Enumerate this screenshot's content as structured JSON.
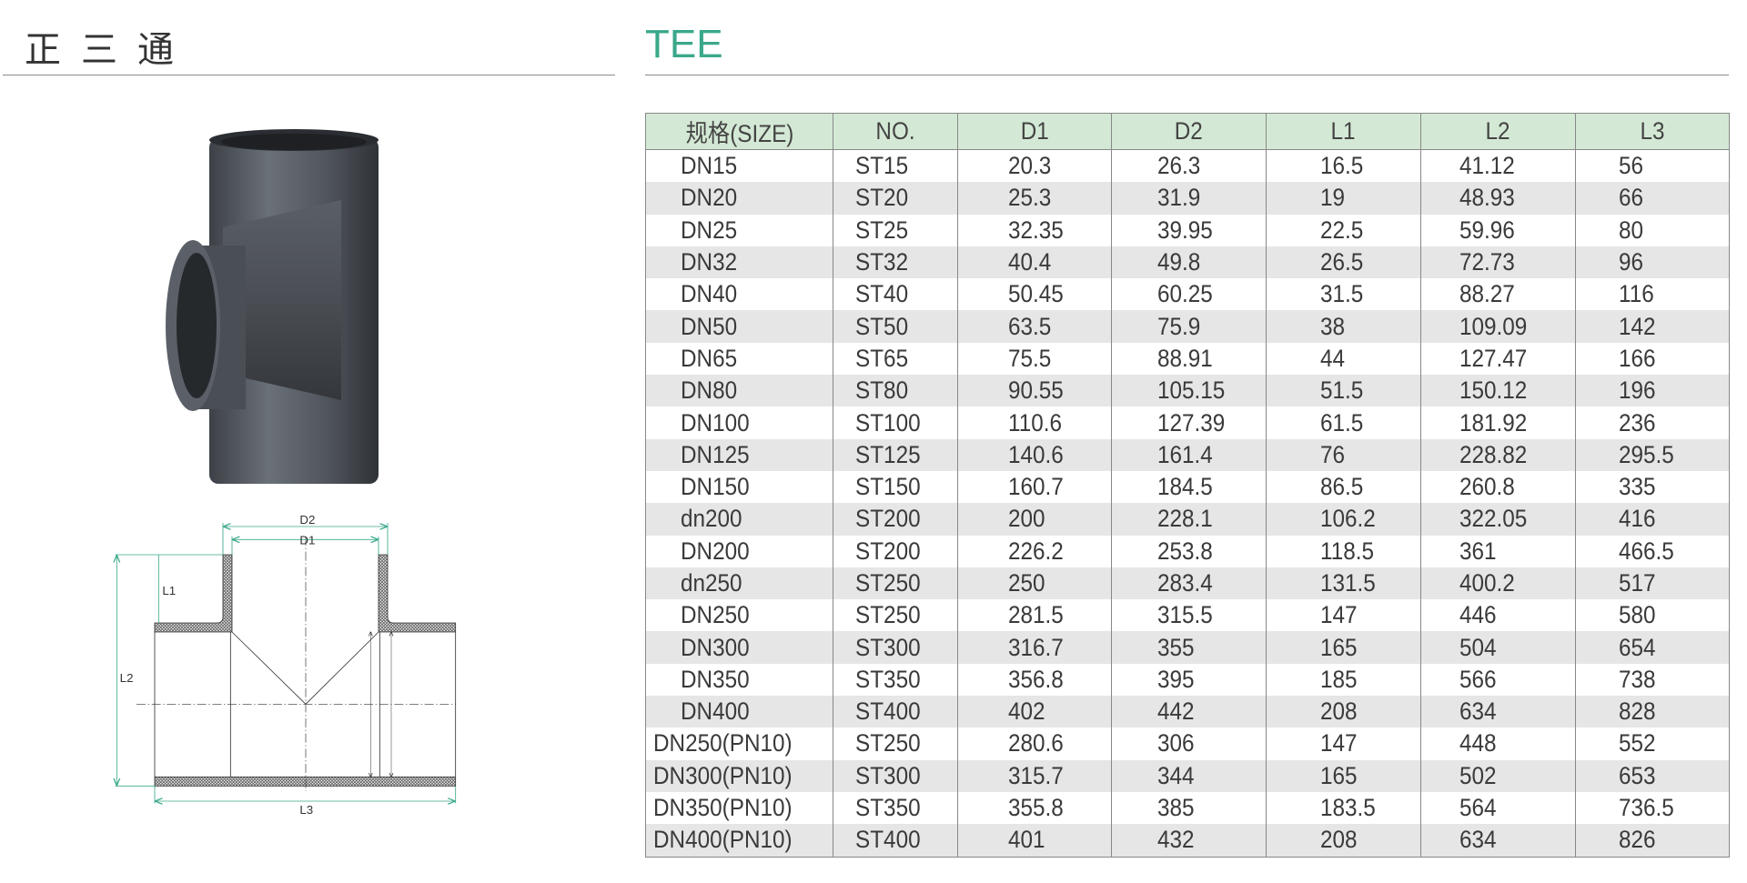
{
  "header": {
    "title_cn": "正三通",
    "title_en": "TEE"
  },
  "colors": {
    "accent": "#3aa88a",
    "table_header_bg": "#d4e9d5",
    "stripe": "#e6e6e6"
  },
  "drawing": {
    "labels": {
      "d2": "D2",
      "d1": "D1",
      "l1": "L1",
      "l2": "L2",
      "l3": "L3"
    }
  },
  "table": {
    "columns": [
      "规格(SIZE)",
      "NO.",
      "D1",
      "D2",
      "L1",
      "L2",
      "L3"
    ],
    "rows": [
      [
        "DN15",
        "ST15",
        "20.3",
        "26.3",
        "16.5",
        "41.12",
        "56"
      ],
      [
        "DN20",
        "ST20",
        "25.3",
        "31.9",
        "19",
        "48.93",
        "66"
      ],
      [
        "DN25",
        "ST25",
        "32.35",
        "39.95",
        "22.5",
        "59.96",
        "80"
      ],
      [
        "DN32",
        "ST32",
        "40.4",
        "49.8",
        "26.5",
        "72.73",
        "96"
      ],
      [
        "DN40",
        "ST40",
        "50.45",
        "60.25",
        "31.5",
        "88.27",
        "116"
      ],
      [
        "DN50",
        "ST50",
        "63.5",
        "75.9",
        "38",
        "109.09",
        "142"
      ],
      [
        "DN65",
        "ST65",
        "75.5",
        "88.91",
        "44",
        "127.47",
        "166"
      ],
      [
        "DN80",
        "ST80",
        "90.55",
        "105.15",
        "51.5",
        "150.12",
        "196"
      ],
      [
        "DN100",
        "ST100",
        "110.6",
        "127.39",
        "61.5",
        "181.92",
        "236"
      ],
      [
        "DN125",
        "ST125",
        "140.6",
        "161.4",
        "76",
        "228.82",
        "295.5"
      ],
      [
        "DN150",
        "ST150",
        "160.7",
        "184.5",
        "86.5",
        "260.8",
        "335"
      ],
      [
        "dn200",
        "ST200",
        "200",
        "228.1",
        "106.2",
        "322.05",
        "416"
      ],
      [
        "DN200",
        "ST200",
        "226.2",
        "253.8",
        "118.5",
        "361",
        "466.5"
      ],
      [
        "dn250",
        "ST250",
        "250",
        "283.4",
        "131.5",
        "400.2",
        "517"
      ],
      [
        "DN250",
        "ST250",
        "281.5",
        "315.5",
        "147",
        "446",
        "580"
      ],
      [
        "DN300",
        "ST300",
        "316.7",
        "355",
        "165",
        "504",
        "654"
      ],
      [
        "DN350",
        "ST350",
        "356.8",
        "395",
        "185",
        "566",
        "738"
      ],
      [
        "DN400",
        "ST400",
        "402",
        "442",
        "208",
        "634",
        "828"
      ],
      [
        "DN250(PN10)",
        "ST250",
        "280.6",
        "306",
        "147",
        "448",
        "552"
      ],
      [
        "DN300(PN10)",
        "ST300",
        "315.7",
        "344",
        "165",
        "502",
        "653"
      ],
      [
        "DN350(PN10)",
        "ST350",
        "355.8",
        "385",
        "183.5",
        "564",
        "736.5"
      ],
      [
        "DN400(PN10)",
        "ST400",
        "401",
        "432",
        "208",
        "634",
        "826"
      ]
    ]
  }
}
